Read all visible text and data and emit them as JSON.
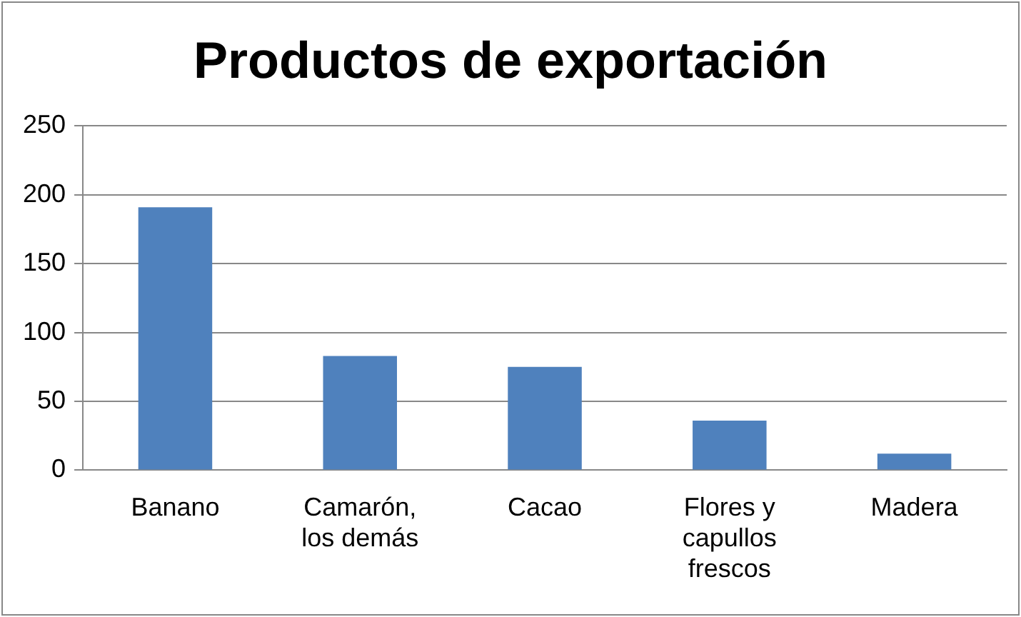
{
  "chart_data": {
    "type": "bar",
    "title": "Productos de exportación",
    "categories": [
      "Banano",
      "Camarón, los demás",
      "Cacao",
      "Flores y capullos frescos",
      "Madera"
    ],
    "values": [
      191,
      83,
      75,
      36,
      12
    ],
    "color": "#4f81bd",
    "ylim": [
      0,
      250
    ],
    "yticks": [
      0,
      50,
      100,
      150,
      200,
      250
    ],
    "grid": "y",
    "legend": false
  }
}
